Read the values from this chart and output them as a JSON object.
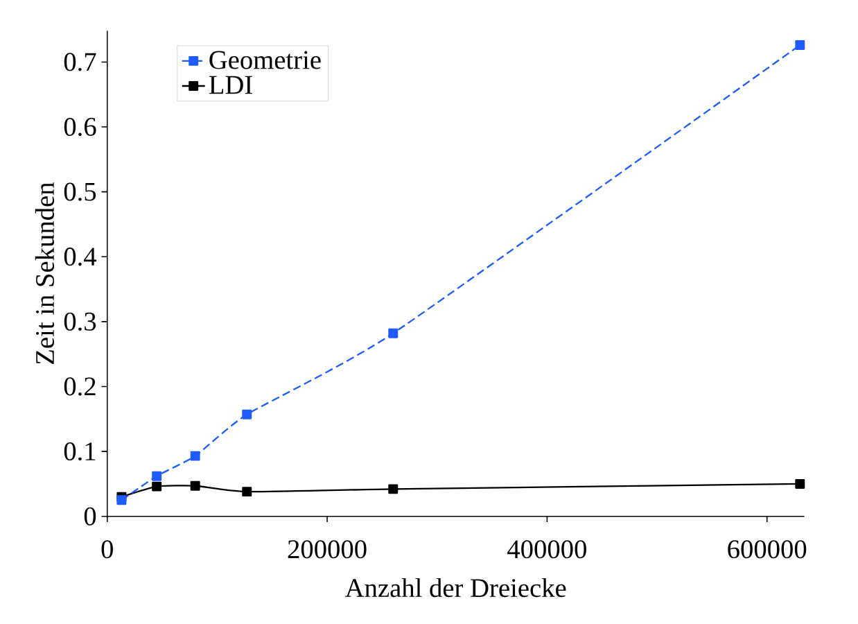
{
  "chart_data": {
    "type": "line",
    "xlabel": "Anzahl der Dreiecke",
    "ylabel": "Zeit in Sekunden",
    "xlim": [
      0,
      634000
    ],
    "ylim": [
      0,
      0.748
    ],
    "xticks": [
      0,
      200000,
      400000,
      600000
    ],
    "yticks": [
      0,
      0.1,
      0.2,
      0.3,
      0.4,
      0.5,
      0.6,
      0.7
    ],
    "grid": false,
    "legend": "top left",
    "marker": "square",
    "series": [
      {
        "name": "Geometrie",
        "color": "#1f5cff",
        "line_style": "dashed",
        "x": [
          13000,
          45000,
          80000,
          127000,
          260000,
          630000
        ],
        "values": [
          0.025,
          0.062,
          0.093,
          0.157,
          0.282,
          0.726
        ]
      },
      {
        "name": "LDI",
        "color": "#000000",
        "line_style": "solid",
        "x": [
          13000,
          45000,
          80000,
          127000,
          260000,
          630000
        ],
        "values": [
          0.03,
          0.046,
          0.047,
          0.038,
          0.042,
          0.05
        ]
      }
    ]
  }
}
